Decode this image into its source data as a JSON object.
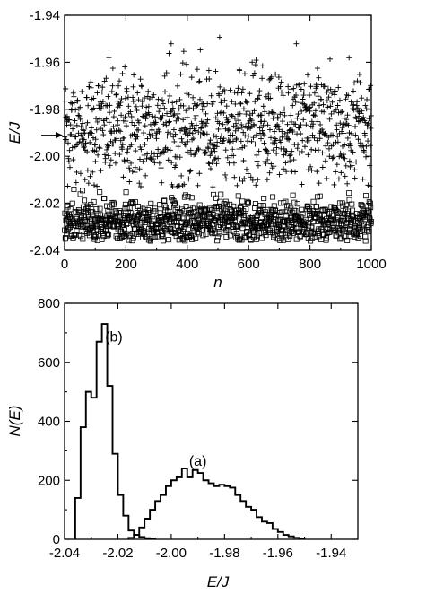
{
  "chart_data": [
    {
      "type": "scatter",
      "xlabel": "n",
      "ylabel": "E/J",
      "xlim": [
        0,
        1000
      ],
      "ylim": [
        -2.04,
        -1.94
      ],
      "xticks": [
        0,
        200,
        400,
        600,
        800,
        1000
      ],
      "yticks": [
        -1.94,
        -1.96,
        -1.98,
        -2.0,
        -2.02,
        -2.04
      ],
      "xtick_labels": [
        "0",
        "200",
        "400",
        "600",
        "800",
        "1000"
      ],
      "ytick_labels": [
        "-1.94",
        "-1.96",
        "-1.98",
        "-2.00",
        "-2.02",
        "-2.04"
      ],
      "arrow_marker": {
        "y": -1.991,
        "side": "left"
      },
      "series": [
        {
          "marker": "plus",
          "x_range": [
            0,
            1000
          ],
          "y_center": -1.988,
          "y_spread": 0.012,
          "y_min": -2.013,
          "y_max": -1.94,
          "count": 1000
        },
        {
          "marker": "square",
          "x_range": [
            0,
            1000
          ],
          "y_center": -2.028,
          "y_spread": 0.005,
          "y_min": -2.036,
          "y_max": -2.01,
          "count": 1000
        }
      ]
    },
    {
      "type": "line",
      "style": "step-histogram",
      "xlabel": "E/J",
      "ylabel": "N(E)",
      "xlim": [
        -2.04,
        -1.93
      ],
      "ylim": [
        0,
        800
      ],
      "xticks": [
        -2.04,
        -2.02,
        -2.0,
        -1.98,
        -1.96,
        -1.94
      ],
      "yticks": [
        0,
        200,
        400,
        600,
        800
      ],
      "xtick_labels": [
        "-2.04",
        "-2.02",
        "-2.00",
        "-1.98",
        "-1.96",
        "-1.94"
      ],
      "ytick_labels": [
        "0",
        "200",
        "400",
        "600",
        "800"
      ],
      "bin_width": 0.002,
      "series": [
        {
          "label": "(b)",
          "bin_start": -2.036,
          "counts": [
            140,
            380,
            500,
            480,
            670,
            730,
            520,
            290,
            150,
            80,
            30,
            15,
            8,
            4,
            2
          ],
          "label_pos": {
            "x": -2.0215,
            "y": 670
          }
        },
        {
          "label": "(a)",
          "bin_start": -2.016,
          "counts": [
            5,
            15,
            40,
            70,
            100,
            130,
            150,
            180,
            200,
            210,
            240,
            210,
            235,
            225,
            200,
            190,
            180,
            185,
            180,
            175,
            150,
            130,
            110,
            100,
            75,
            60,
            55,
            35,
            25,
            15,
            10,
            5,
            3
          ],
          "label_pos": {
            "x": -1.99,
            "y": 250
          }
        }
      ]
    }
  ]
}
